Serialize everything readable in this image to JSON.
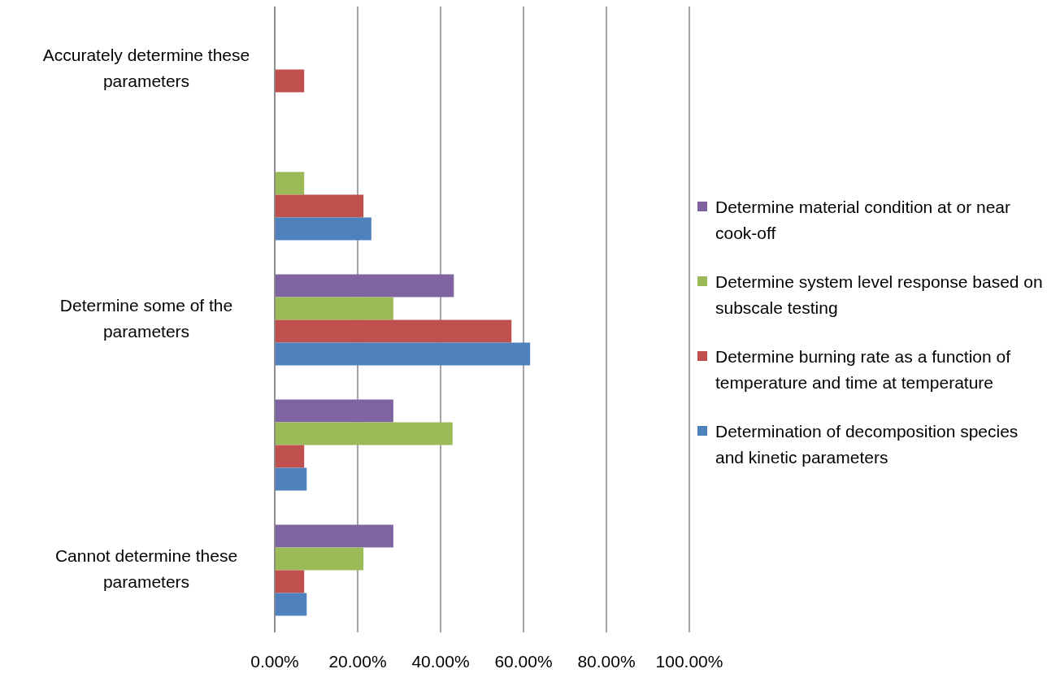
{
  "chart_data": {
    "type": "bar",
    "orientation": "horizontal",
    "categories": [
      "Accurately determine these parameters",
      null,
      "Determine some of the parameters",
      null,
      "Cannot determine these parameters"
    ],
    "series": [
      {
        "name": "Determine material condition at or near cook-off",
        "color": "#8064a2",
        "values": [
          0,
          0,
          43.2,
          28.6,
          28.6
        ]
      },
      {
        "name": "Determine system level response based on subscale testing",
        "color": "#9bbb59",
        "values": [
          0,
          7.1,
          28.6,
          42.9,
          21.4
        ]
      },
      {
        "name": "Determine burning rate as a function of temperature and time at temperature",
        "color": "#c0504d",
        "values": [
          7.1,
          21.4,
          57.1,
          7.1,
          7.1
        ]
      },
      {
        "name": "Determination of decomposition species and kinetic parameters",
        "color": "#4f81bd",
        "values": [
          0,
          23.3,
          61.6,
          7.7,
          7.7
        ]
      }
    ],
    "xlim": [
      0,
      100
    ],
    "xticks": [
      {
        "value": 0,
        "label": "0.00%"
      },
      {
        "value": 20,
        "label": "20.00%"
      },
      {
        "value": 40,
        "label": "40.00%"
      },
      {
        "value": 60,
        "label": "60.00%"
      },
      {
        "value": 80,
        "label": "80.00%"
      },
      {
        "value": 100,
        "label": "100.00%"
      }
    ],
    "grid": "x",
    "legend": "right"
  }
}
